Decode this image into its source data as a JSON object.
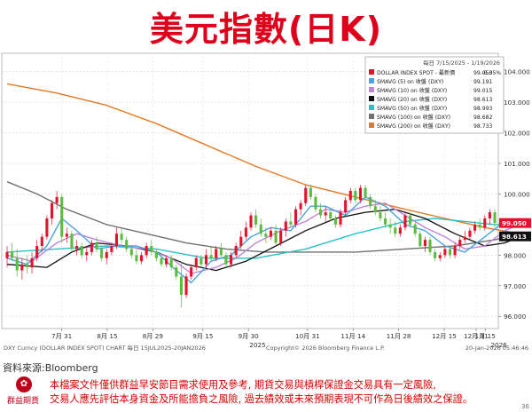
{
  "page": {
    "title": "美元指數(日K)",
    "source": "資料來源:Bloomberg",
    "logo_text": "群益期貨",
    "disclaimer": [
      "本檔案文件僅供群益早安節目需求使用及參考, 期貨交易與槓桿保證金交易具有一定風險,",
      "交易人應先評估本身資金及所能擔負之風險, 過去績效或未來預期表現不可作為日後績效之保證。"
    ],
    "page_number": "36"
  },
  "chart_data": {
    "type": "line",
    "footer_left": "DXY Curncy (DOLLAR INDEX SPOT) CHART 每日 15JUL2025-20JAN2026",
    "footer_center": "Copyright© 2026 Bloomberg Finance L.P.",
    "footer_right": "20-Jan-2026 05:46:46",
    "legend": {
      "header": "每日 7/15/2025 - 1/19/2026",
      "items": [
        {
          "label": "DOLLAR INDEX SPOT - 最新價",
          "value": "99.050",
          "change": "-0.35%",
          "color": "#e8112d"
        },
        {
          "label": "SMAVG (5) on 收盤 (DXY)",
          "value": "99.191",
          "color": "#4aa3df"
        },
        {
          "label": "SMAVG (10) on 收盤 (DXY)",
          "value": "99.015",
          "color": "#c084d8"
        },
        {
          "label": "SMAVG (20) on 收盤 (DXY)",
          "value": "98.613",
          "color": "#111111"
        },
        {
          "label": "SMAVG (50) on 收盤 (DXY)",
          "value": "98.993",
          "color": "#26c2c8"
        },
        {
          "label": "SMAVG (100) on 收盤 (DXY)",
          "value": "98.682",
          "color": "#707070"
        },
        {
          "label": "SMAVG (200) on 收盤 (DXY)",
          "value": "98.733",
          "color": "#e87722"
        }
      ]
    },
    "y_ticks": [
      "104.000",
      "103.000",
      "102.000",
      "101.000",
      "100.000",
      "99.000",
      "98.000",
      "97.000",
      "96.000"
    ],
    "ylim": [
      95.6,
      104.6
    ],
    "x_ticks": [
      "7月 31",
      "8月 15",
      "8月 29",
      "9月 15",
      "9月 30",
      "10月 31",
      "11月 14",
      "11月 28",
      "12月 15",
      "12月 31",
      "1月 15"
    ],
    "x_years": [
      "2025",
      "2026"
    ],
    "price_badges": [
      {
        "value": "99.050",
        "color": "#e8112d"
      },
      {
        "value": "98.613",
        "color": "#111111"
      }
    ],
    "candles": [
      {
        "o": 97.9,
        "h": 98.3,
        "l": 97.6,
        "c": 98.1
      },
      {
        "o": 98.1,
        "h": 98.4,
        "l": 97.8,
        "c": 97.9
      },
      {
        "o": 97.9,
        "h": 98.2,
        "l": 97.3,
        "c": 97.5
      },
      {
        "o": 97.5,
        "h": 97.9,
        "l": 97.2,
        "c": 97.7
      },
      {
        "o": 97.7,
        "h": 98.0,
        "l": 97.4,
        "c": 97.6
      },
      {
        "o": 97.6,
        "h": 98.1,
        "l": 97.4,
        "c": 97.9
      },
      {
        "o": 97.9,
        "h": 98.5,
        "l": 97.8,
        "c": 98.3
      },
      {
        "o": 98.3,
        "h": 98.7,
        "l": 98.1,
        "c": 98.6
      },
      {
        "o": 98.6,
        "h": 99.3,
        "l": 98.5,
        "c": 99.2
      },
      {
        "o": 99.2,
        "h": 99.8,
        "l": 99.0,
        "c": 99.7
      },
      {
        "o": 99.7,
        "h": 100.1,
        "l": 99.5,
        "c": 99.9
      },
      {
        "o": 99.9,
        "h": 100.0,
        "l": 98.4,
        "c": 98.6
      },
      {
        "o": 98.6,
        "h": 98.9,
        "l": 98.4,
        "c": 98.7
      },
      {
        "o": 98.7,
        "h": 98.8,
        "l": 98.1,
        "c": 98.2
      },
      {
        "o": 98.2,
        "h": 98.5,
        "l": 98.0,
        "c": 98.3
      },
      {
        "o": 98.3,
        "h": 98.4,
        "l": 97.9,
        "c": 98.0
      },
      {
        "o": 98.0,
        "h": 98.3,
        "l": 97.8,
        "c": 98.1
      },
      {
        "o": 98.1,
        "h": 98.5,
        "l": 98.0,
        "c": 98.4
      },
      {
        "o": 98.4,
        "h": 98.6,
        "l": 98.1,
        "c": 98.2
      },
      {
        "o": 98.2,
        "h": 98.3,
        "l": 97.8,
        "c": 97.9
      },
      {
        "o": 97.9,
        "h": 98.2,
        "l": 97.7,
        "c": 98.1
      },
      {
        "o": 98.1,
        "h": 98.4,
        "l": 98.0,
        "c": 98.3
      },
      {
        "o": 98.3,
        "h": 98.9,
        "l": 98.2,
        "c": 98.7
      },
      {
        "o": 98.7,
        "h": 98.9,
        "l": 98.4,
        "c": 98.5
      },
      {
        "o": 98.5,
        "h": 98.6,
        "l": 98.1,
        "c": 98.2
      },
      {
        "o": 98.2,
        "h": 98.3,
        "l": 97.9,
        "c": 98.0
      },
      {
        "o": 98.0,
        "h": 98.2,
        "l": 97.7,
        "c": 97.8
      },
      {
        "o": 97.8,
        "h": 98.1,
        "l": 97.7,
        "c": 98.0
      },
      {
        "o": 98.0,
        "h": 98.4,
        "l": 97.9,
        "c": 98.3
      },
      {
        "o": 98.3,
        "h": 98.5,
        "l": 98.0,
        "c": 98.1
      },
      {
        "o": 98.1,
        "h": 98.2,
        "l": 97.8,
        "c": 97.9
      },
      {
        "o": 97.9,
        "h": 98.0,
        "l": 97.6,
        "c": 97.7
      },
      {
        "o": 97.7,
        "h": 98.0,
        "l": 97.6,
        "c": 97.9
      },
      {
        "o": 97.9,
        "h": 98.0,
        "l": 97.5,
        "c": 97.6
      },
      {
        "o": 97.6,
        "h": 97.7,
        "l": 97.2,
        "c": 97.3
      },
      {
        "o": 97.3,
        "h": 97.8,
        "l": 96.3,
        "c": 96.7
      },
      {
        "o": 96.7,
        "h": 97.4,
        "l": 96.6,
        "c": 97.3
      },
      {
        "o": 97.3,
        "h": 97.7,
        "l": 97.2,
        "c": 97.6
      },
      {
        "o": 97.6,
        "h": 98.0,
        "l": 97.5,
        "c": 97.9
      },
      {
        "o": 97.9,
        "h": 98.0,
        "l": 97.6,
        "c": 97.7
      },
      {
        "o": 97.7,
        "h": 98.2,
        "l": 97.6,
        "c": 98.0
      },
      {
        "o": 98.0,
        "h": 98.3,
        "l": 97.8,
        "c": 97.9
      },
      {
        "o": 97.9,
        "h": 98.3,
        "l": 97.8,
        "c": 98.2
      },
      {
        "o": 98.2,
        "h": 98.4,
        "l": 97.9,
        "c": 98.0
      },
      {
        "o": 98.0,
        "h": 98.1,
        "l": 97.6,
        "c": 97.7
      },
      {
        "o": 97.7,
        "h": 98.1,
        "l": 97.6,
        "c": 98.0
      },
      {
        "o": 98.0,
        "h": 98.4,
        "l": 97.9,
        "c": 98.3
      },
      {
        "o": 98.3,
        "h": 98.8,
        "l": 98.2,
        "c": 98.6
      },
      {
        "o": 98.6,
        "h": 99.1,
        "l": 98.5,
        "c": 98.9
      },
      {
        "o": 98.9,
        "h": 99.4,
        "l": 98.8,
        "c": 99.3
      },
      {
        "o": 99.3,
        "h": 99.5,
        "l": 98.9,
        "c": 99.0
      },
      {
        "o": 99.0,
        "h": 99.2,
        "l": 98.6,
        "c": 98.7
      },
      {
        "o": 98.7,
        "h": 98.9,
        "l": 98.4,
        "c": 98.6
      },
      {
        "o": 98.6,
        "h": 98.9,
        "l": 98.5,
        "c": 98.8
      },
      {
        "o": 98.8,
        "h": 99.0,
        "l": 98.3,
        "c": 98.4
      },
      {
        "o": 98.4,
        "h": 98.9,
        "l": 98.3,
        "c": 98.8
      },
      {
        "o": 98.8,
        "h": 99.2,
        "l": 98.6,
        "c": 99.1
      },
      {
        "o": 99.1,
        "h": 99.4,
        "l": 98.9,
        "c": 99.0
      },
      {
        "o": 99.0,
        "h": 99.6,
        "l": 98.9,
        "c": 99.5
      },
      {
        "o": 99.5,
        "h": 99.8,
        "l": 99.3,
        "c": 99.7
      },
      {
        "o": 99.7,
        "h": 100.3,
        "l": 99.6,
        "c": 100.2
      },
      {
        "o": 100.2,
        "h": 100.3,
        "l": 99.8,
        "c": 99.9
      },
      {
        "o": 99.9,
        "h": 100.0,
        "l": 99.4,
        "c": 99.5
      },
      {
        "o": 99.5,
        "h": 99.7,
        "l": 99.2,
        "c": 99.3
      },
      {
        "o": 99.3,
        "h": 99.6,
        "l": 99.1,
        "c": 99.4
      },
      {
        "o": 99.4,
        "h": 99.5,
        "l": 99.1,
        "c": 99.2
      },
      {
        "o": 99.2,
        "h": 99.3,
        "l": 98.9,
        "c": 99.0
      },
      {
        "o": 99.0,
        "h": 99.5,
        "l": 98.9,
        "c": 99.4
      },
      {
        "o": 99.4,
        "h": 99.9,
        "l": 99.3,
        "c": 99.8
      },
      {
        "o": 99.8,
        "h": 100.2,
        "l": 99.7,
        "c": 100.1
      },
      {
        "o": 100.1,
        "h": 100.2,
        "l": 99.7,
        "c": 99.8
      },
      {
        "o": 99.8,
        "h": 100.3,
        "l": 99.7,
        "c": 100.2
      },
      {
        "o": 100.2,
        "h": 100.3,
        "l": 99.8,
        "c": 99.9
      },
      {
        "o": 99.9,
        "h": 100.0,
        "l": 99.5,
        "c": 99.6
      },
      {
        "o": 99.6,
        "h": 99.8,
        "l": 99.3,
        "c": 99.4
      },
      {
        "o": 99.4,
        "h": 99.6,
        "l": 99.1,
        "c": 99.2
      },
      {
        "o": 99.2,
        "h": 99.4,
        "l": 98.9,
        "c": 99.0
      },
      {
        "o": 99.0,
        "h": 99.2,
        "l": 98.7,
        "c": 98.9
      },
      {
        "o": 98.9,
        "h": 99.1,
        "l": 98.6,
        "c": 98.7
      },
      {
        "o": 98.7,
        "h": 99.0,
        "l": 98.6,
        "c": 98.9
      },
      {
        "o": 98.9,
        "h": 99.4,
        "l": 98.8,
        "c": 99.3
      },
      {
        "o": 99.3,
        "h": 99.4,
        "l": 98.9,
        "c": 99.0
      },
      {
        "o": 99.0,
        "h": 99.1,
        "l": 98.6,
        "c": 98.7
      },
      {
        "o": 98.7,
        "h": 98.8,
        "l": 98.2,
        "c": 98.3
      },
      {
        "o": 98.3,
        "h": 98.6,
        "l": 98.1,
        "c": 98.5
      },
      {
        "o": 98.5,
        "h": 98.6,
        "l": 98.0,
        "c": 98.1
      },
      {
        "o": 98.1,
        "h": 98.2,
        "l": 97.8,
        "c": 97.9
      },
      {
        "o": 97.9,
        "h": 98.1,
        "l": 97.8,
        "c": 98.0
      },
      {
        "o": 98.0,
        "h": 98.3,
        "l": 97.9,
        "c": 98.2
      },
      {
        "o": 98.2,
        "h": 98.3,
        "l": 97.9,
        "c": 98.0
      },
      {
        "o": 98.0,
        "h": 98.4,
        "l": 97.9,
        "c": 98.3
      },
      {
        "o": 98.3,
        "h": 98.6,
        "l": 98.2,
        "c": 98.5
      },
      {
        "o": 98.5,
        "h": 98.8,
        "l": 98.4,
        "c": 98.6
      },
      {
        "o": 98.6,
        "h": 98.9,
        "l": 98.5,
        "c": 98.8
      },
      {
        "o": 98.8,
        "h": 99.1,
        "l": 98.7,
        "c": 99.0
      },
      {
        "o": 99.0,
        "h": 99.2,
        "l": 98.8,
        "c": 98.9
      },
      {
        "o": 98.9,
        "h": 99.3,
        "l": 98.8,
        "c": 99.2
      },
      {
        "o": 99.2,
        "h": 99.5,
        "l": 99.0,
        "c": 99.4
      },
      {
        "o": 99.4,
        "h": 99.5,
        "l": 98.9,
        "c": 99.05
      }
    ],
    "series": [
      {
        "name": "SMAVG (5) on 收盤 (DXY)",
        "color": "#4aa3df",
        "values": [
          [
            0,
            97.9
          ],
          [
            4,
            97.7
          ],
          [
            8,
            98.3
          ],
          [
            11,
            99.2
          ],
          [
            14,
            98.8
          ],
          [
            18,
            98.2
          ],
          [
            22,
            98.3
          ],
          [
            26,
            98.3
          ],
          [
            30,
            98.1
          ],
          [
            34,
            97.5
          ],
          [
            37,
            97.1
          ],
          [
            41,
            97.8
          ],
          [
            45,
            98.0
          ],
          [
            49,
            98.6
          ],
          [
            53,
            98.9
          ],
          [
            57,
            98.8
          ],
          [
            61,
            99.6
          ],
          [
            64,
            99.6
          ],
          [
            68,
            99.3
          ],
          [
            72,
            99.9
          ],
          [
            76,
            99.6
          ],
          [
            80,
            99.0
          ],
          [
            84,
            98.8
          ],
          [
            88,
            98.3
          ],
          [
            92,
            98.1
          ],
          [
            96,
            98.6
          ],
          [
            100,
            99.1
          ],
          [
            103,
            99.2
          ]
        ]
      },
      {
        "name": "SMAVG (10) on 收盤 (DXY)",
        "color": "#c084d8",
        "values": [
          [
            0,
            98.0
          ],
          [
            5,
            97.8
          ],
          [
            10,
            98.4
          ],
          [
            14,
            98.7
          ],
          [
            18,
            98.5
          ],
          [
            23,
            98.3
          ],
          [
            28,
            98.2
          ],
          [
            33,
            97.9
          ],
          [
            37,
            97.4
          ],
          [
            42,
            97.6
          ],
          [
            46,
            97.9
          ],
          [
            50,
            98.4
          ],
          [
            55,
            98.8
          ],
          [
            60,
            99.1
          ],
          [
            64,
            99.5
          ],
          [
            68,
            99.4
          ],
          [
            72,
            99.6
          ],
          [
            76,
            99.7
          ],
          [
            80,
            99.3
          ],
          [
            84,
            98.9
          ],
          [
            88,
            98.6
          ],
          [
            92,
            98.2
          ],
          [
            96,
            98.3
          ],
          [
            100,
            98.8
          ],
          [
            103,
            99.0
          ]
        ]
      },
      {
        "name": "SMAVG (20) on 收盤 (DXY)",
        "color": "#111111",
        "values": [
          [
            0,
            97.7
          ],
          [
            8,
            97.6
          ],
          [
            13,
            98.1
          ],
          [
            18,
            98.4
          ],
          [
            24,
            98.3
          ],
          [
            30,
            98.1
          ],
          [
            36,
            97.7
          ],
          [
            42,
            97.5
          ],
          [
            48,
            97.8
          ],
          [
            54,
            98.3
          ],
          [
            60,
            98.8
          ],
          [
            66,
            99.2
          ],
          [
            72,
            99.4
          ],
          [
            78,
            99.5
          ],
          [
            84,
            99.2
          ],
          [
            90,
            98.7
          ],
          [
            96,
            98.3
          ],
          [
            100,
            98.4
          ],
          [
            103,
            98.6
          ]
        ]
      },
      {
        "name": "SMAVG (50) on 收盤 (DXY)",
        "color": "#26c2c8",
        "values": [
          [
            0,
            98.1
          ],
          [
            10,
            98.2
          ],
          [
            20,
            98.3
          ],
          [
            30,
            98.2
          ],
          [
            40,
            97.9
          ],
          [
            50,
            97.9
          ],
          [
            60,
            98.2
          ],
          [
            70,
            98.7
          ],
          [
            80,
            99.1
          ],
          [
            86,
            99.2
          ],
          [
            92,
            99.1
          ],
          [
            98,
            99.0
          ],
          [
            103,
            99.0
          ]
        ]
      },
      {
        "name": "SMAVG (100) on 收盤 (DXY)",
        "color": "#707070",
        "values": [
          [
            0,
            100.4
          ],
          [
            6,
            100.0
          ],
          [
            12,
            99.5
          ],
          [
            20,
            99.0
          ],
          [
            28,
            98.7
          ],
          [
            36,
            98.4
          ],
          [
            44,
            98.2
          ],
          [
            52,
            98.1
          ],
          [
            60,
            98.1
          ],
          [
            70,
            98.1
          ],
          [
            80,
            98.2
          ],
          [
            90,
            98.3
          ],
          [
            98,
            98.5
          ],
          [
            103,
            98.7
          ]
        ]
      },
      {
        "name": "SMAVG (200) on 收盤 (DXY)",
        "color": "#e87722",
        "values": [
          [
            0,
            103.6
          ],
          [
            10,
            103.3
          ],
          [
            20,
            102.9
          ],
          [
            30,
            102.3
          ],
          [
            40,
            101.6
          ],
          [
            50,
            100.9
          ],
          [
            60,
            100.3
          ],
          [
            70,
            99.9
          ],
          [
            80,
            99.5
          ],
          [
            88,
            99.2
          ],
          [
            96,
            98.9
          ],
          [
            103,
            98.7
          ]
        ]
      }
    ]
  }
}
